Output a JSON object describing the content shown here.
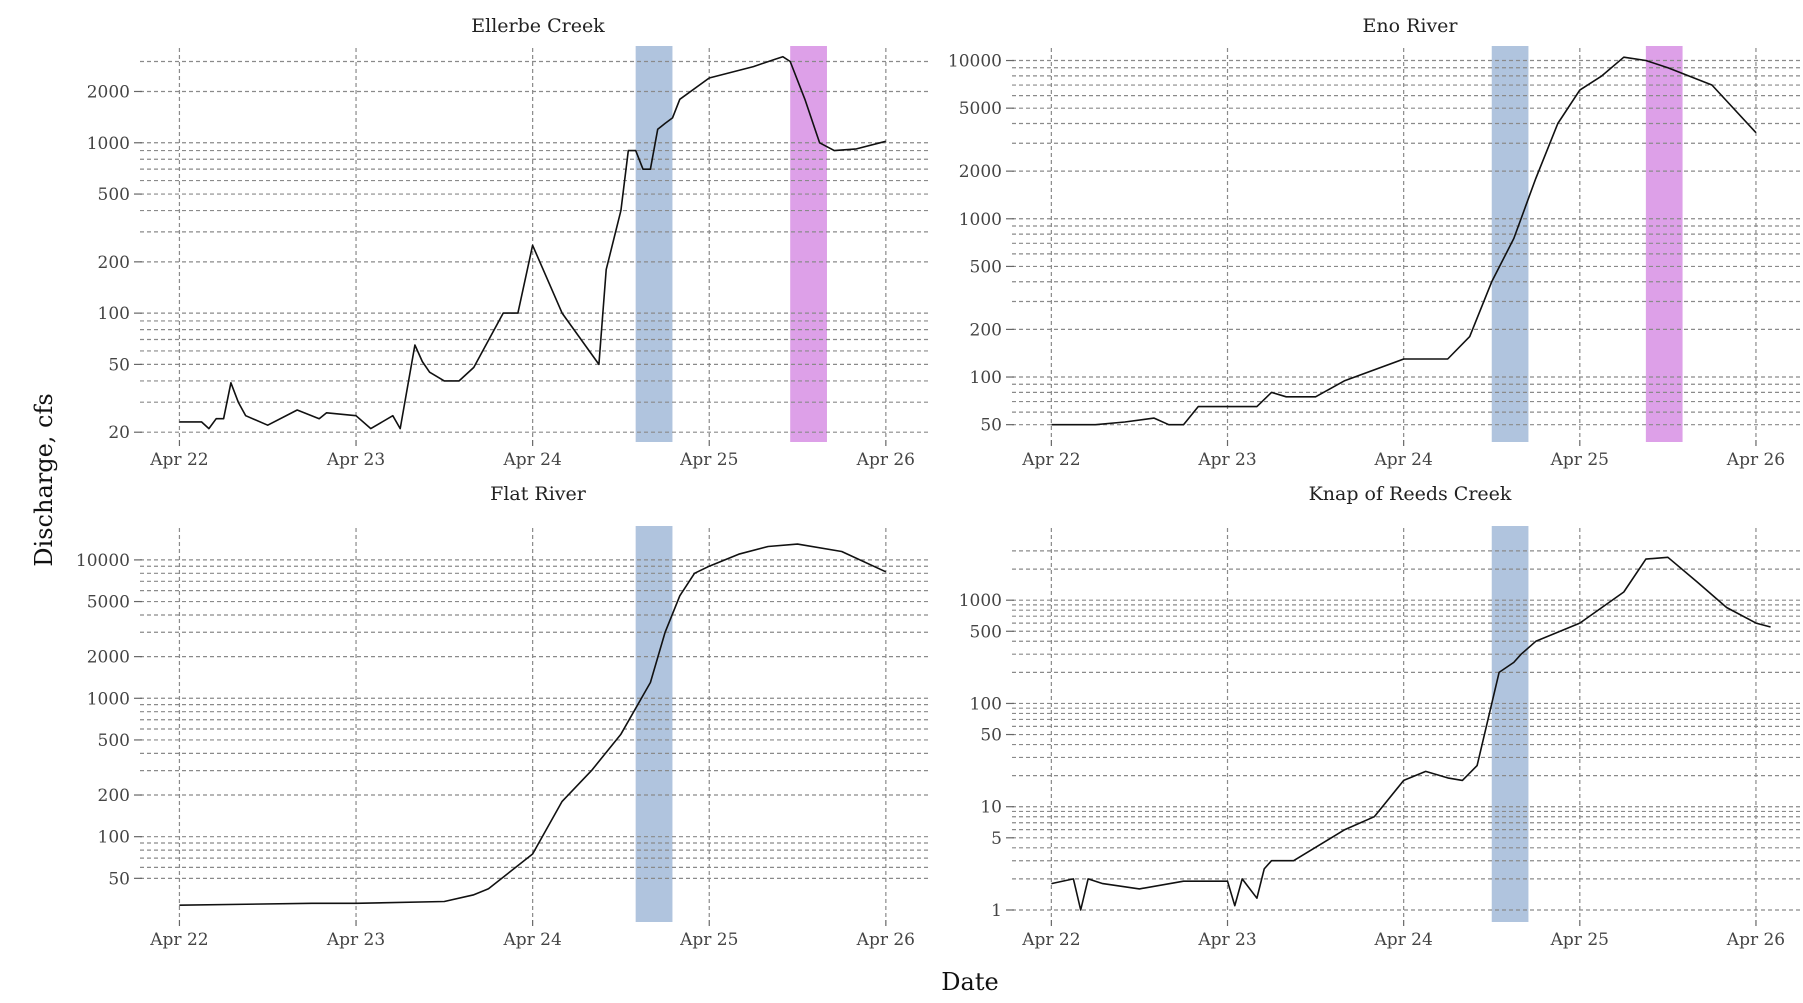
{
  "figure": {
    "xlabel": "Date",
    "ylabel": "Discharge, cfs",
    "x_tick_labels": [
      "Apr 22",
      "Apr 23",
      "Apr 24",
      "Apr 25",
      "Apr 26"
    ]
  },
  "colors": {
    "band_1": "#b0c4de",
    "band_2": "#dda0e8",
    "line": "#111111",
    "grid": "#8a8a8a"
  },
  "chart_data": [
    {
      "type": "line",
      "title": "Ellerbe Creek",
      "xlabel": "Date",
      "ylabel": "Discharge, cfs",
      "y_scale": "log",
      "ylim": [
        18,
        3600
      ],
      "y_ticks": [
        20,
        50,
        100,
        200,
        500,
        1000,
        2000
      ],
      "y_minor_grid": [
        30,
        40,
        60,
        70,
        80,
        90,
        300,
        400,
        600,
        700,
        800,
        900,
        3000
      ],
      "xlim": [
        "Apr 21 20:00",
        "Apr 26 06:00"
      ],
      "grid": true,
      "bands": [
        {
          "start": "Apr 24 14:00",
          "end": "Apr 24 19:00",
          "color": "band_1"
        },
        {
          "start": "Apr 25 11:00",
          "end": "Apr 25 16:00",
          "color": "band_2"
        }
      ],
      "series": [
        {
          "x": [
            "Apr 22 00:00",
            "Apr 22 03:00",
            "Apr 22 04:00",
            "Apr 22 05:00",
            "Apr 22 06:00",
            "Apr 22 07:00",
            "Apr 22 08:00",
            "Apr 22 09:00",
            "Apr 22 12:00",
            "Apr 22 16:00",
            "Apr 22 19:00",
            "Apr 22 20:00",
            "Apr 23 00:00",
            "Apr 23 02:00",
            "Apr 23 05:00",
            "Apr 23 06:00",
            "Apr 23 08:00",
            "Apr 23 09:00",
            "Apr 23 10:00",
            "Apr 23 12:00",
            "Apr 23 14:00",
            "Apr 23 16:00",
            "Apr 23 20:00",
            "Apr 23 22:00",
            "Apr 24 00:00",
            "Apr 24 04:00",
            "Apr 24 09:00",
            "Apr 24 10:00",
            "Apr 24 12:00",
            "Apr 24 13:00",
            "Apr 24 14:00",
            "Apr 24 15:00",
            "Apr 24 16:00",
            "Apr 24 17:00",
            "Apr 24 18:00",
            "Apr 24 19:00",
            "Apr 24 20:00",
            "Apr 25 00:00",
            "Apr 25 06:00",
            "Apr 25 09:00",
            "Apr 25 10:00",
            "Apr 25 11:00",
            "Apr 25 13:00",
            "Apr 25 15:00",
            "Apr 25 17:00",
            "Apr 25 20:00",
            "Apr 26 00:00"
          ],
          "y": [
            23,
            23,
            21,
            24,
            24,
            39,
            30,
            25,
            22,
            27,
            24,
            26,
            25,
            21,
            25,
            21,
            65,
            52,
            45,
            40,
            40,
            48,
            100,
            100,
            250,
            100,
            50,
            180,
            400,
            900,
            900,
            700,
            700,
            1200,
            1300,
            1400,
            1800,
            2400,
            2800,
            3100,
            3200,
            3000,
            1800,
            1000,
            900,
            920,
            1020
          ]
        }
      ]
    },
    {
      "type": "line",
      "title": "Eno River",
      "xlabel": "Date",
      "ylabel": "Discharge, cfs",
      "y_scale": "log",
      "ylim": [
        40,
        12000
      ],
      "y_ticks": [
        50,
        100,
        200,
        500,
        1000,
        2000,
        5000,
        10000
      ],
      "y_minor_grid": [
        60,
        70,
        80,
        90,
        300,
        400,
        600,
        700,
        800,
        900,
        3000,
        4000,
        6000,
        7000,
        8000,
        9000
      ],
      "xlim": [
        "Apr 21 20:00",
        "Apr 26 06:00"
      ],
      "grid": true,
      "bands": [
        {
          "start": "Apr 24 12:00",
          "end": "Apr 24 17:00",
          "color": "band_1"
        },
        {
          "start": "Apr 25 09:00",
          "end": "Apr 25 14:00",
          "color": "band_2"
        }
      ],
      "series": [
        {
          "x": [
            "Apr 22 00:00",
            "Apr 22 06:00",
            "Apr 22 10:00",
            "Apr 22 14:00",
            "Apr 22 16:00",
            "Apr 22 18:00",
            "Apr 22 20:00",
            "Apr 23 00:00",
            "Apr 23 04:00",
            "Apr 23 06:00",
            "Apr 23 08:00",
            "Apr 23 12:00",
            "Apr 23 16:00",
            "Apr 24 00:00",
            "Apr 24 06:00",
            "Apr 24 09:00",
            "Apr 24 12:00",
            "Apr 24 15:00",
            "Apr 24 18:00",
            "Apr 24 21:00",
            "Apr 25 00:00",
            "Apr 25 03:00",
            "Apr 25 06:00",
            "Apr 25 09:00",
            "Apr 25 12:00",
            "Apr 25 18:00",
            "Apr 26 00:00"
          ],
          "y": [
            50,
            50,
            52,
            55,
            50,
            50,
            65,
            65,
            65,
            80,
            75,
            75,
            95,
            130,
            130,
            180,
            400,
            750,
            1800,
            4000,
            6500,
            8000,
            10500,
            10000,
            9000,
            7000,
            3500
          ]
        }
      ]
    },
    {
      "type": "line",
      "title": "Flat River",
      "xlabel": "Date",
      "ylabel": "Discharge, cfs",
      "y_scale": "log",
      "ylim": [
        25,
        17000
      ],
      "y_ticks": [
        50,
        100,
        200,
        500,
        1000,
        2000,
        5000,
        10000
      ],
      "y_minor_grid": [
        60,
        70,
        80,
        90,
        300,
        400,
        600,
        700,
        800,
        900,
        3000,
        4000,
        6000,
        7000,
        8000,
        9000
      ],
      "xlim": [
        "Apr 21 20:00",
        "Apr 26 06:00"
      ],
      "grid": true,
      "bands": [
        {
          "start": "Apr 24 14:00",
          "end": "Apr 24 19:00",
          "color": "band_1"
        }
      ],
      "series": [
        {
          "x": [
            "Apr 22 00:00",
            "Apr 22 18:00",
            "Apr 23 00:00",
            "Apr 23 12:00",
            "Apr 23 16:00",
            "Apr 23 18:00",
            "Apr 24 00:00",
            "Apr 24 04:00",
            "Apr 24 08:00",
            "Apr 24 12:00",
            "Apr 24 16:00",
            "Apr 24 18:00",
            "Apr 24 20:00",
            "Apr 24 22:00",
            "Apr 25 00:00",
            "Apr 25 04:00",
            "Apr 25 08:00",
            "Apr 25 12:00",
            "Apr 25 18:00",
            "Apr 26 00:00"
          ],
          "y": [
            32,
            33,
            33,
            34,
            38,
            42,
            75,
            180,
            300,
            550,
            1300,
            3000,
            5500,
            8000,
            9000,
            11000,
            12500,
            13000,
            11500,
            8200
          ]
        }
      ]
    },
    {
      "type": "line",
      "title": "Knap of Reeds Creek",
      "xlabel": "Date",
      "ylabel": "Discharge, cfs",
      "y_scale": "log",
      "ylim": [
        0.8,
        5000
      ],
      "y_ticks": [
        1,
        5,
        10,
        50,
        100,
        500,
        1000
      ],
      "y_minor_grid": [
        2,
        3,
        4,
        6,
        7,
        8,
        9,
        20,
        30,
        40,
        60,
        70,
        80,
        90,
        200,
        300,
        400,
        600,
        700,
        800,
        900,
        2000,
        3000
      ],
      "xlim": [
        "Apr 21 20:00",
        "Apr 26 06:00"
      ],
      "grid": true,
      "bands": [
        {
          "start": "Apr 24 12:00",
          "end": "Apr 24 17:00",
          "color": "band_1"
        }
      ],
      "series": [
        {
          "x": [
            "Apr 22 00:00",
            "Apr 22 03:00",
            "Apr 22 04:00",
            "Apr 22 05:00",
            "Apr 22 07:00",
            "Apr 22 12:00",
            "Apr 22 18:00",
            "Apr 23 00:00",
            "Apr 23 01:00",
            "Apr 23 02:00",
            "Apr 23 04:00",
            "Apr 23 05:00",
            "Apr 23 06:00",
            "Apr 23 09:00",
            "Apr 23 16:00",
            "Apr 23 20:00",
            "Apr 24 00:00",
            "Apr 24 03:00",
            "Apr 24 06:00",
            "Apr 24 08:00",
            "Apr 24 10:00",
            "Apr 24 13:00",
            "Apr 24 15:00",
            "Apr 24 16:00",
            "Apr 24 18:00",
            "Apr 25 00:00",
            "Apr 25 06:00",
            "Apr 25 09:00",
            "Apr 25 12:00",
            "Apr 25 16:00",
            "Apr 25 20:00",
            "Apr 26 00:00",
            "Apr 26 02:00"
          ],
          "y": [
            1.8,
            2.0,
            1.0,
            2.0,
            1.8,
            1.6,
            1.9,
            1.9,
            1.1,
            2.0,
            1.3,
            2.5,
            3.0,
            3.0,
            6.0,
            8.0,
            18.0,
            22.0,
            19.0,
            18.0,
            25.0,
            200.0,
            250.0,
            300.0,
            400.0,
            600.0,
            1200.0,
            2500.0,
            2600.0,
            1500.0,
            850.0,
            600.0,
            550.0
          ]
        }
      ]
    }
  ]
}
